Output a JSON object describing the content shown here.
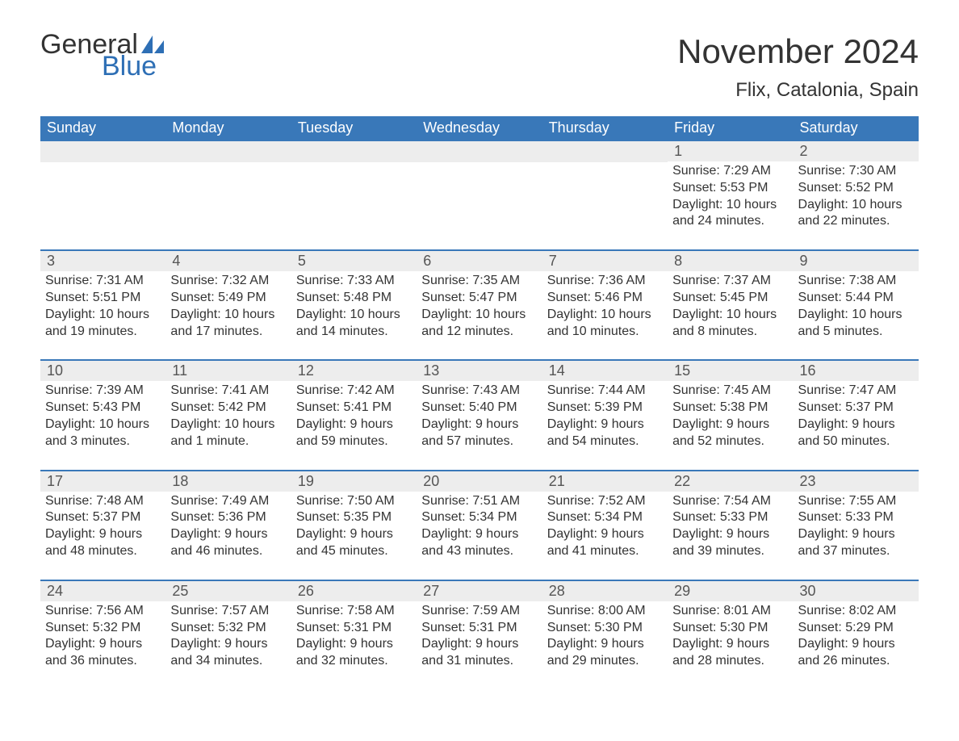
{
  "logo": {
    "word1": "General",
    "word2": "Blue"
  },
  "title": "November 2024",
  "location": "Flix, Catalonia, Spain",
  "colors": {
    "header_bg": "#3978b9",
    "header_text": "#ffffff",
    "daynum_bg": "#ededed",
    "text": "#333333",
    "logo_blue": "#2e6fb5"
  },
  "weekdays": [
    "Sunday",
    "Monday",
    "Tuesday",
    "Wednesday",
    "Thursday",
    "Friday",
    "Saturday"
  ],
  "weeks": [
    [
      {
        "day": "",
        "sunrise": "",
        "sunset": "",
        "daylight": ""
      },
      {
        "day": "",
        "sunrise": "",
        "sunset": "",
        "daylight": ""
      },
      {
        "day": "",
        "sunrise": "",
        "sunset": "",
        "daylight": ""
      },
      {
        "day": "",
        "sunrise": "",
        "sunset": "",
        "daylight": ""
      },
      {
        "day": "",
        "sunrise": "",
        "sunset": "",
        "daylight": ""
      },
      {
        "day": "1",
        "sunrise": "Sunrise: 7:29 AM",
        "sunset": "Sunset: 5:53 PM",
        "daylight": "Daylight: 10 hours and 24 minutes."
      },
      {
        "day": "2",
        "sunrise": "Sunrise: 7:30 AM",
        "sunset": "Sunset: 5:52 PM",
        "daylight": "Daylight: 10 hours and 22 minutes."
      }
    ],
    [
      {
        "day": "3",
        "sunrise": "Sunrise: 7:31 AM",
        "sunset": "Sunset: 5:51 PM",
        "daylight": "Daylight: 10 hours and 19 minutes."
      },
      {
        "day": "4",
        "sunrise": "Sunrise: 7:32 AM",
        "sunset": "Sunset: 5:49 PM",
        "daylight": "Daylight: 10 hours and 17 minutes."
      },
      {
        "day": "5",
        "sunrise": "Sunrise: 7:33 AM",
        "sunset": "Sunset: 5:48 PM",
        "daylight": "Daylight: 10 hours and 14 minutes."
      },
      {
        "day": "6",
        "sunrise": "Sunrise: 7:35 AM",
        "sunset": "Sunset: 5:47 PM",
        "daylight": "Daylight: 10 hours and 12 minutes."
      },
      {
        "day": "7",
        "sunrise": "Sunrise: 7:36 AM",
        "sunset": "Sunset: 5:46 PM",
        "daylight": "Daylight: 10 hours and 10 minutes."
      },
      {
        "day": "8",
        "sunrise": "Sunrise: 7:37 AM",
        "sunset": "Sunset: 5:45 PM",
        "daylight": "Daylight: 10 hours and 8 minutes."
      },
      {
        "day": "9",
        "sunrise": "Sunrise: 7:38 AM",
        "sunset": "Sunset: 5:44 PM",
        "daylight": "Daylight: 10 hours and 5 minutes."
      }
    ],
    [
      {
        "day": "10",
        "sunrise": "Sunrise: 7:39 AM",
        "sunset": "Sunset: 5:43 PM",
        "daylight": "Daylight: 10 hours and 3 minutes."
      },
      {
        "day": "11",
        "sunrise": "Sunrise: 7:41 AM",
        "sunset": "Sunset: 5:42 PM",
        "daylight": "Daylight: 10 hours and 1 minute."
      },
      {
        "day": "12",
        "sunrise": "Sunrise: 7:42 AM",
        "sunset": "Sunset: 5:41 PM",
        "daylight": "Daylight: 9 hours and 59 minutes."
      },
      {
        "day": "13",
        "sunrise": "Sunrise: 7:43 AM",
        "sunset": "Sunset: 5:40 PM",
        "daylight": "Daylight: 9 hours and 57 minutes."
      },
      {
        "day": "14",
        "sunrise": "Sunrise: 7:44 AM",
        "sunset": "Sunset: 5:39 PM",
        "daylight": "Daylight: 9 hours and 54 minutes."
      },
      {
        "day": "15",
        "sunrise": "Sunrise: 7:45 AM",
        "sunset": "Sunset: 5:38 PM",
        "daylight": "Daylight: 9 hours and 52 minutes."
      },
      {
        "day": "16",
        "sunrise": "Sunrise: 7:47 AM",
        "sunset": "Sunset: 5:37 PM",
        "daylight": "Daylight: 9 hours and 50 minutes."
      }
    ],
    [
      {
        "day": "17",
        "sunrise": "Sunrise: 7:48 AM",
        "sunset": "Sunset: 5:37 PM",
        "daylight": "Daylight: 9 hours and 48 minutes."
      },
      {
        "day": "18",
        "sunrise": "Sunrise: 7:49 AM",
        "sunset": "Sunset: 5:36 PM",
        "daylight": "Daylight: 9 hours and 46 minutes."
      },
      {
        "day": "19",
        "sunrise": "Sunrise: 7:50 AM",
        "sunset": "Sunset: 5:35 PM",
        "daylight": "Daylight: 9 hours and 45 minutes."
      },
      {
        "day": "20",
        "sunrise": "Sunrise: 7:51 AM",
        "sunset": "Sunset: 5:34 PM",
        "daylight": "Daylight: 9 hours and 43 minutes."
      },
      {
        "day": "21",
        "sunrise": "Sunrise: 7:52 AM",
        "sunset": "Sunset: 5:34 PM",
        "daylight": "Daylight: 9 hours and 41 minutes."
      },
      {
        "day": "22",
        "sunrise": "Sunrise: 7:54 AM",
        "sunset": "Sunset: 5:33 PM",
        "daylight": "Daylight: 9 hours and 39 minutes."
      },
      {
        "day": "23",
        "sunrise": "Sunrise: 7:55 AM",
        "sunset": "Sunset: 5:33 PM",
        "daylight": "Daylight: 9 hours and 37 minutes."
      }
    ],
    [
      {
        "day": "24",
        "sunrise": "Sunrise: 7:56 AM",
        "sunset": "Sunset: 5:32 PM",
        "daylight": "Daylight: 9 hours and 36 minutes."
      },
      {
        "day": "25",
        "sunrise": "Sunrise: 7:57 AM",
        "sunset": "Sunset: 5:32 PM",
        "daylight": "Daylight: 9 hours and 34 minutes."
      },
      {
        "day": "26",
        "sunrise": "Sunrise: 7:58 AM",
        "sunset": "Sunset: 5:31 PM",
        "daylight": "Daylight: 9 hours and 32 minutes."
      },
      {
        "day": "27",
        "sunrise": "Sunrise: 7:59 AM",
        "sunset": "Sunset: 5:31 PM",
        "daylight": "Daylight: 9 hours and 31 minutes."
      },
      {
        "day": "28",
        "sunrise": "Sunrise: 8:00 AM",
        "sunset": "Sunset: 5:30 PM",
        "daylight": "Daylight: 9 hours and 29 minutes."
      },
      {
        "day": "29",
        "sunrise": "Sunrise: 8:01 AM",
        "sunset": "Sunset: 5:30 PM",
        "daylight": "Daylight: 9 hours and 28 minutes."
      },
      {
        "day": "30",
        "sunrise": "Sunrise: 8:02 AM",
        "sunset": "Sunset: 5:29 PM",
        "daylight": "Daylight: 9 hours and 26 minutes."
      }
    ]
  ]
}
